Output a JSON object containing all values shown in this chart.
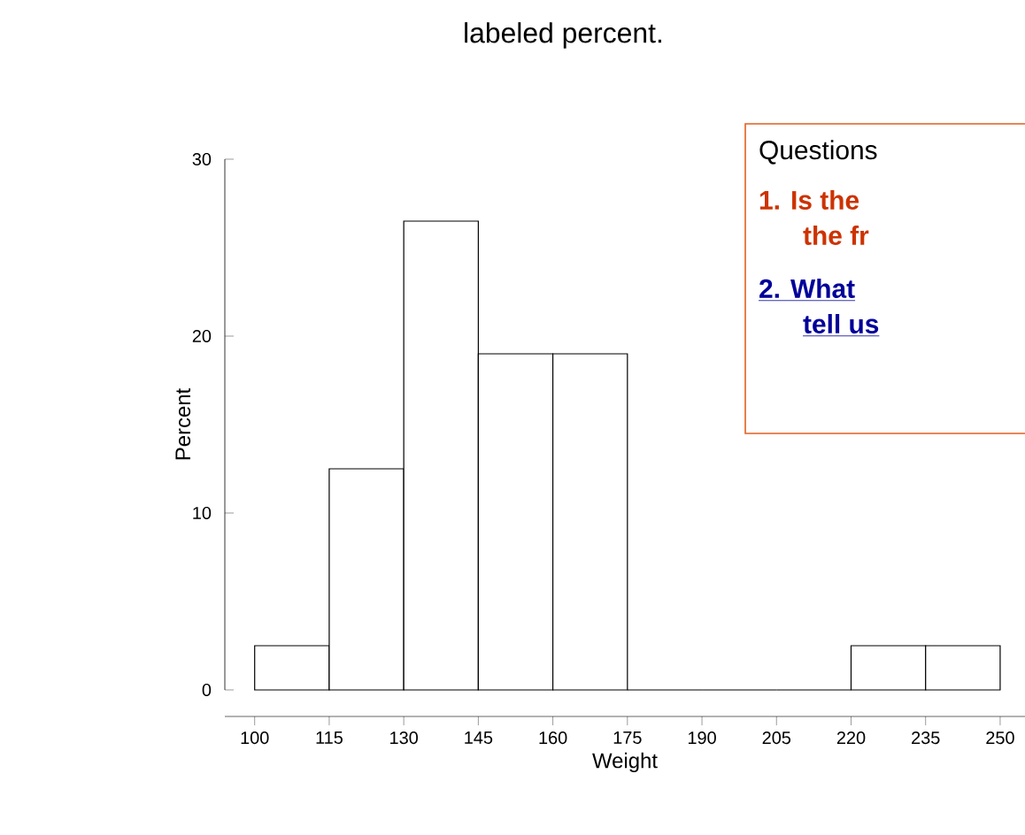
{
  "chart_data": {
    "type": "histogram",
    "xlabel": "Weight",
    "ylabel": "Percent",
    "bins": [
      100,
      115,
      130,
      145,
      160,
      175,
      190,
      205,
      220,
      235,
      250
    ],
    "values": [
      2.5,
      12.5,
      26.5,
      19,
      19,
      0,
      0,
      0,
      2.5,
      2.5
    ],
    "xlim": [
      94,
      255
    ],
    "ylim": [
      0,
      30
    ],
    "xticks": [
      100,
      115,
      130,
      145,
      160,
      175,
      190,
      205,
      220,
      235,
      250
    ],
    "yticks": [
      0,
      10,
      20,
      30
    ],
    "annotations": [
      "labeled percent.",
      "Questions",
      "1. Is the",
      "the fr",
      "2. What",
      "tell us"
    ]
  }
}
